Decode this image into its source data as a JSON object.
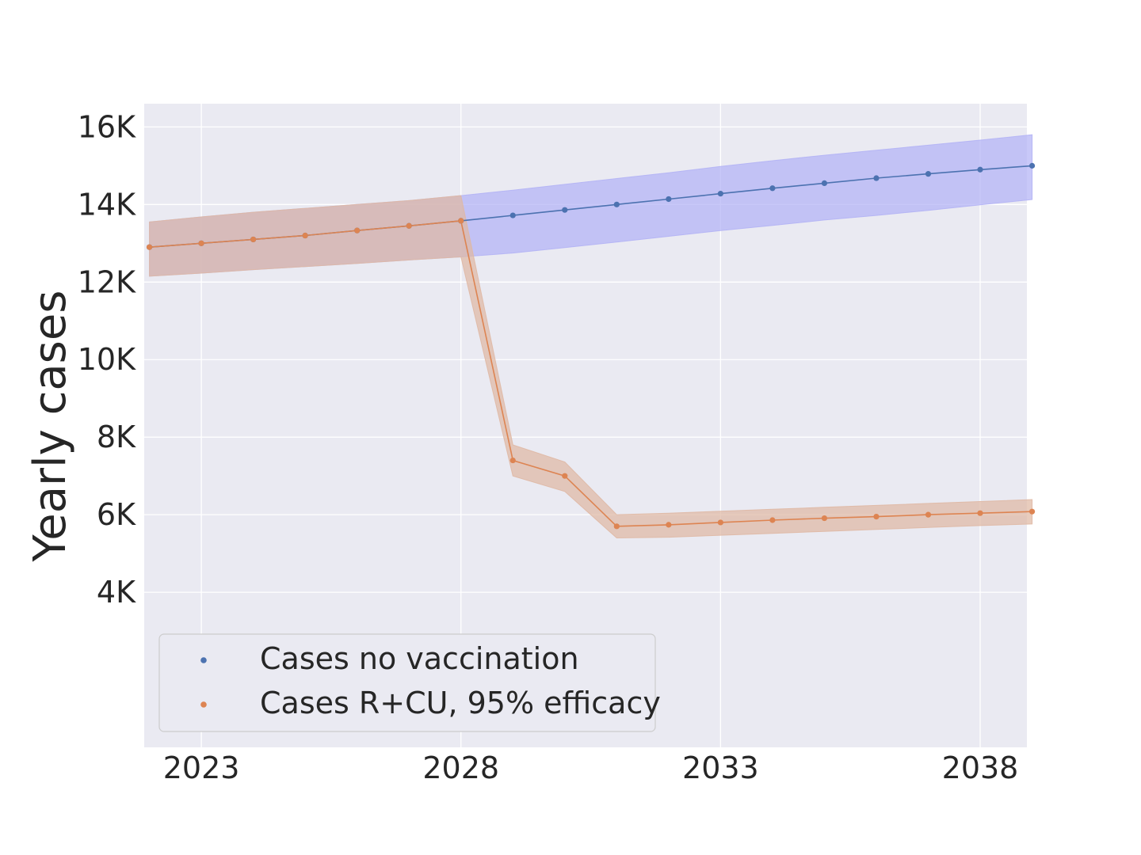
{
  "chart_data": {
    "type": "line",
    "title": "",
    "xlabel": "",
    "ylabel": "Yearly cases",
    "xlim": [
      2021.9,
      2038.9
    ],
    "ylim": [
      0,
      16600
    ],
    "x_ticks": [
      2023,
      2028,
      2033,
      2038
    ],
    "x_tick_labels": [
      "2023",
      "2028",
      "2033",
      "2038"
    ],
    "y_ticks": [
      4000,
      6000,
      8000,
      10000,
      12000,
      14000,
      16000
    ],
    "y_tick_labels": [
      "4K",
      "6K",
      "8K",
      "10K",
      "12K",
      "14K",
      "16K"
    ],
    "grid": true,
    "legend_position": "lower-left",
    "series": [
      {
        "name": "Cases no vaccination",
        "color": "#4c72b0",
        "band_color": "#b3b3f5",
        "x": [
          2022,
          2023,
          2024,
          2025,
          2026,
          2027,
          2028,
          2029,
          2030,
          2031,
          2032,
          2033,
          2034,
          2035,
          2036,
          2037,
          2038,
          2039
        ],
        "y": [
          12900,
          13000,
          13100,
          13200,
          13330,
          13450,
          13580,
          13720,
          13860,
          14000,
          14140,
          14280,
          14420,
          14550,
          14680,
          14790,
          14900,
          15000
        ],
        "lower": [
          12150,
          12230,
          12320,
          12400,
          12480,
          12570,
          12650,
          12750,
          12890,
          13030,
          13180,
          13330,
          13460,
          13600,
          13720,
          13850,
          13990,
          14130
        ],
        "upper": [
          13550,
          13680,
          13800,
          13900,
          14000,
          14100,
          14230,
          14370,
          14520,
          14670,
          14820,
          14980,
          15130,
          15270,
          15400,
          15530,
          15660,
          15800
        ]
      },
      {
        "name": "Cases R+CU, 95% efficacy",
        "color": "#dd8452",
        "band_color": "#dfb8a4",
        "x": [
          2022,
          2023,
          2024,
          2025,
          2026,
          2027,
          2028,
          2029,
          2030,
          2031,
          2032,
          2033,
          2034,
          2035,
          2036,
          2037,
          2038,
          2039
        ],
        "y": [
          12900,
          13000,
          13100,
          13200,
          13330,
          13450,
          13580,
          7400,
          7000,
          5700,
          5740,
          5800,
          5860,
          5910,
          5950,
          6000,
          6040,
          6080
        ],
        "lower": [
          12150,
          12230,
          12320,
          12400,
          12480,
          12570,
          12650,
          7000,
          6600,
          5400,
          5420,
          5470,
          5520,
          5570,
          5620,
          5670,
          5720,
          5760
        ],
        "upper": [
          13550,
          13680,
          13800,
          13900,
          14000,
          14100,
          14230,
          7800,
          7360,
          6000,
          6040,
          6090,
          6140,
          6190,
          6240,
          6290,
          6340,
          6390
        ]
      }
    ]
  }
}
